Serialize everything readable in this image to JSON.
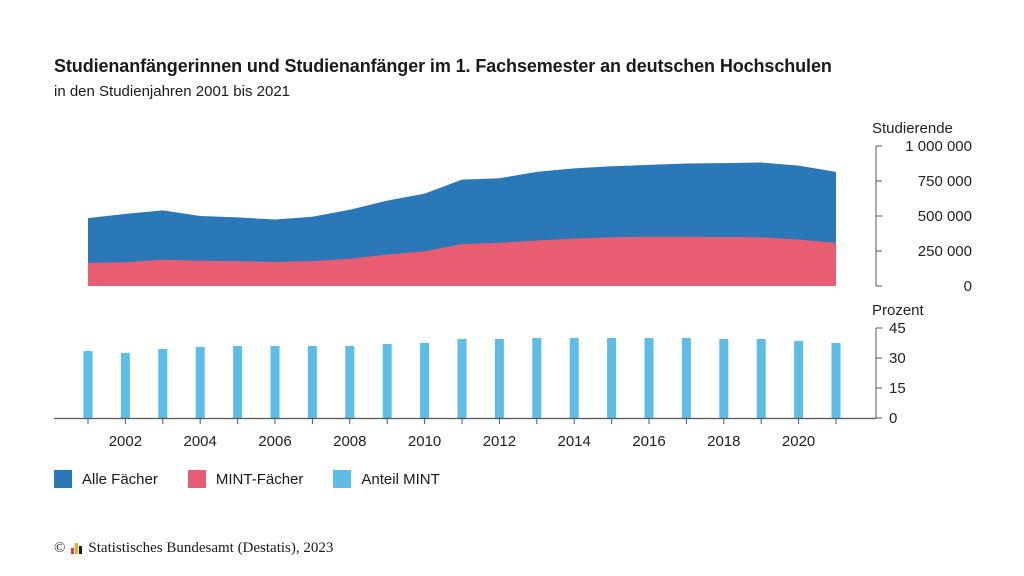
{
  "title": "Studienanfängerinnen und Studienanfänger im 1. Fachsemester an deutschen Hochschulen",
  "subtitle": "in den Studienjahren 2001 bis 2021",
  "colors": {
    "alle": "#2a78b8",
    "mint": "#e85d72",
    "anteil": "#5cbde8",
    "axis": "#555555",
    "logo": [
      "#e03a3e",
      "#f5a623",
      "#1a1a1a"
    ]
  },
  "legend": {
    "alle": "Alle Fächer",
    "mint": "MINT-Fächer",
    "anteil": "Anteil MINT"
  },
  "footer": {
    "copyright": "©",
    "text": "Statistisches Bundesamt (Destatis), 2023"
  },
  "chart_data": [
    {
      "type": "area",
      "ylabel": "Studierende",
      "ylim": [
        0,
        1000000
      ],
      "yticks": [
        0,
        250000,
        500000,
        750000,
        1000000
      ],
      "ytick_labels": [
        "0",
        "250 000",
        "500 000",
        "750 000",
        "1 000 000"
      ],
      "x": [
        2001,
        2002,
        2003,
        2004,
        2005,
        2006,
        2007,
        2008,
        2009,
        2010,
        2011,
        2012,
        2013,
        2014,
        2015,
        2016,
        2017,
        2018,
        2019,
        2020,
        2021
      ],
      "series": [
        {
          "name": "Alle Fächer",
          "values": [
            485000,
            515000,
            540000,
            500000,
            490000,
            475000,
            495000,
            545000,
            610000,
            660000,
            760000,
            770000,
            815000,
            840000,
            855000,
            865000,
            875000,
            878000,
            882000,
            860000,
            815000
          ]
        },
        {
          "name": "MINT-Fächer",
          "values": [
            165000,
            170000,
            188000,
            180000,
            178000,
            172000,
            178000,
            195000,
            225000,
            248000,
            300000,
            308000,
            325000,
            338000,
            348000,
            352000,
            352000,
            350000,
            348000,
            332000,
            308000
          ]
        }
      ]
    },
    {
      "type": "bar",
      "ylabel": "Prozent",
      "ylim": [
        0,
        45
      ],
      "yticks": [
        0,
        15,
        30,
        45
      ],
      "ytick_labels": [
        "0",
        "15",
        "30",
        "45"
      ],
      "x": [
        2001,
        2002,
        2003,
        2004,
        2005,
        2006,
        2007,
        2008,
        2009,
        2010,
        2011,
        2012,
        2013,
        2014,
        2015,
        2016,
        2017,
        2018,
        2019,
        2020,
        2021
      ],
      "xtick_labels": [
        "2002",
        "2004",
        "2006",
        "2008",
        "2010",
        "2012",
        "2014",
        "2016",
        "2018",
        "2020"
      ],
      "series": [
        {
          "name": "Anteil MINT",
          "values": [
            33.5,
            32.5,
            34.5,
            35.5,
            36.0,
            36.0,
            36.0,
            36.0,
            37.0,
            37.5,
            39.5,
            39.5,
            40.0,
            40.0,
            40.0,
            40.0,
            40.0,
            39.5,
            39.5,
            38.5,
            37.5
          ]
        }
      ]
    }
  ]
}
